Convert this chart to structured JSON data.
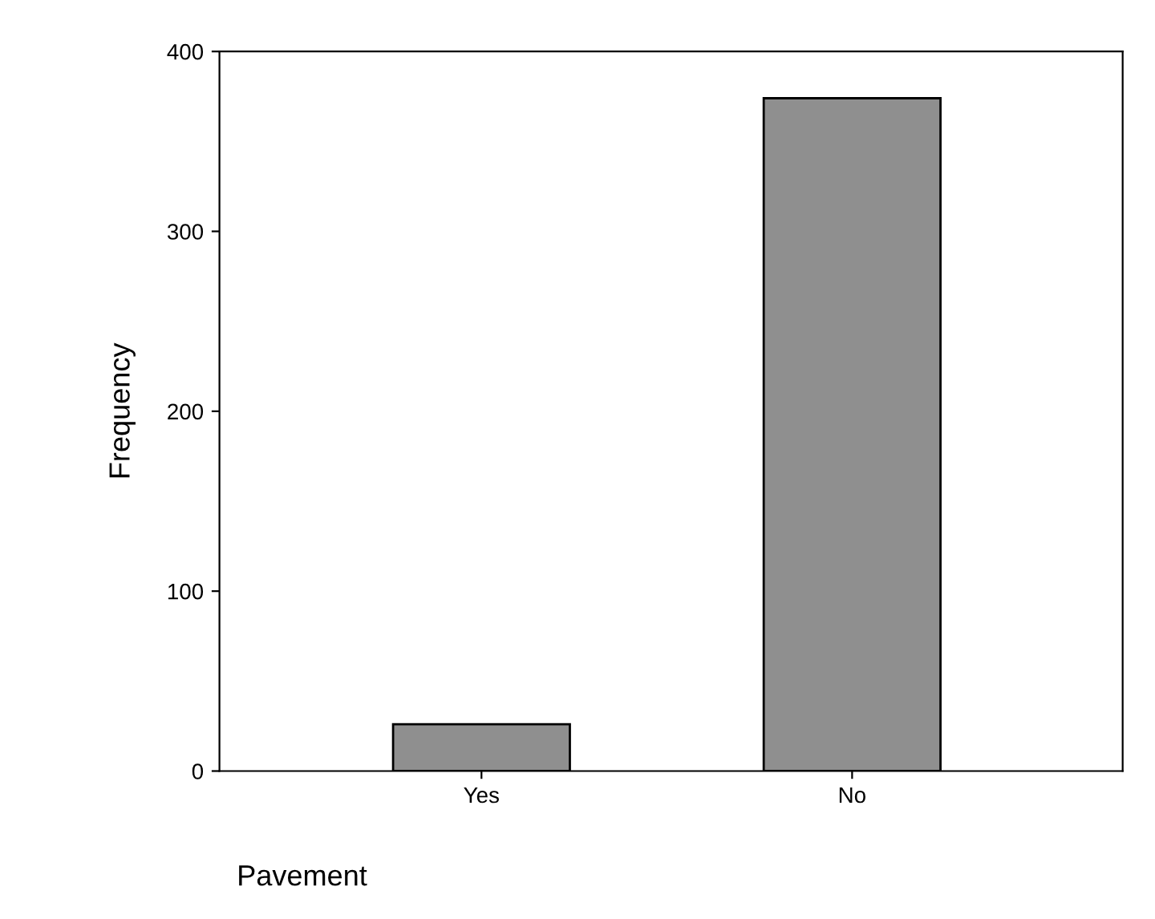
{
  "chart_data": {
    "type": "bar",
    "categories": [
      "Yes",
      "No"
    ],
    "values": [
      26,
      374
    ],
    "color": "#8f8f8f",
    "xlabel": "Pavement",
    "ylabel": "Frequency",
    "ylim": [
      0,
      400
    ],
    "yticks": [
      0,
      100,
      200,
      300,
      400
    ],
    "grid": false
  }
}
